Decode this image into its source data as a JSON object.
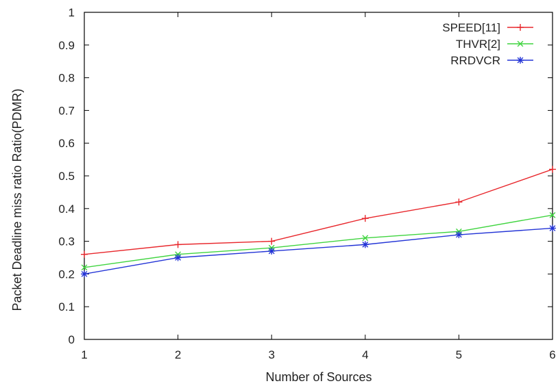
{
  "chart_data": {
    "type": "line",
    "xlabel": "Number of Sources",
    "ylabel": "Packet Deadline miss ratio Ratio(PDMR)",
    "x": [
      1,
      2,
      3,
      4,
      5,
      6
    ],
    "xlim": [
      1,
      6
    ],
    "ylim": [
      0,
      1
    ],
    "xticks": [
      "1",
      "2",
      "3",
      "4",
      "5",
      "6"
    ],
    "yticks": [
      "0",
      "0.1",
      "0.2",
      "0.3",
      "0.4",
      "0.5",
      "0.6",
      "0.7",
      "0.8",
      "0.9",
      "1"
    ],
    "grid": false,
    "legend_position": "top-right",
    "series": [
      {
        "name": "SPEED[11]",
        "color": "#e8262b",
        "marker": "plus",
        "values": [
          0.26,
          0.29,
          0.3,
          0.37,
          0.42,
          0.52
        ]
      },
      {
        "name": "THVR[2]",
        "color": "#3fd43f",
        "marker": "cross",
        "values": [
          0.22,
          0.26,
          0.28,
          0.31,
          0.33,
          0.38
        ]
      },
      {
        "name": "RRDVCR",
        "color": "#2233d6",
        "marker": "asterisk",
        "values": [
          0.2,
          0.25,
          0.27,
          0.29,
          0.32,
          0.34
        ]
      }
    ]
  }
}
